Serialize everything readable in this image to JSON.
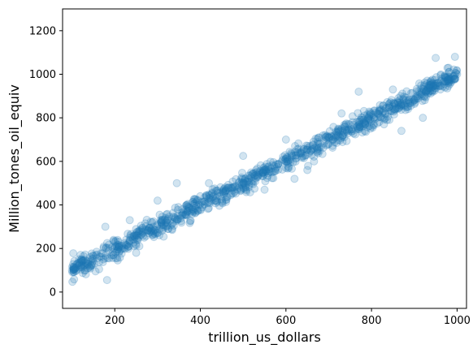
{
  "chart_data": {
    "type": "scatter",
    "title": "",
    "xlabel": "trillion_us_dollars",
    "ylabel": "Million_tones_oil_equiv",
    "xlim": [
      78,
      1022
    ],
    "ylim": [
      -75,
      1300
    ],
    "xticks": [
      200,
      400,
      600,
      800,
      1000
    ],
    "yticks": [
      0,
      200,
      400,
      600,
      800,
      1000,
      1200
    ],
    "grid": false,
    "point_color": "#1f77b4",
    "point_alpha": 0.2,
    "trend": {
      "slope": 1.0,
      "intercept": 0,
      "noise": 40
    },
    "x_range": [
      100,
      1000
    ],
    "n_points": 1000,
    "points": [
      [
        101,
        47
      ],
      [
        103,
        178
      ],
      [
        110,
        100
      ],
      [
        117,
        135
      ],
      [
        131,
        172
      ],
      [
        145,
        120
      ],
      [
        155,
        95
      ],
      [
        178,
        300
      ],
      [
        182,
        55
      ],
      [
        200,
        230
      ],
      [
        235,
        330
      ],
      [
        250,
        180
      ],
      [
        300,
        420
      ],
      [
        320,
        300
      ],
      [
        345,
        500
      ],
      [
        400,
        380
      ],
      [
        420,
        500
      ],
      [
        480,
        460
      ],
      [
        500,
        625
      ],
      [
        550,
        470
      ],
      [
        600,
        700
      ],
      [
        620,
        520
      ],
      [
        650,
        560
      ],
      [
        700,
        680
      ],
      [
        730,
        820
      ],
      [
        770,
        920
      ],
      [
        800,
        760
      ],
      [
        850,
        930
      ],
      [
        870,
        740
      ],
      [
        900,
        880
      ],
      [
        920,
        800
      ],
      [
        950,
        1075
      ],
      [
        980,
        1030
      ],
      [
        995,
        1080
      ],
      [
        1000,
        1000
      ]
    ]
  }
}
